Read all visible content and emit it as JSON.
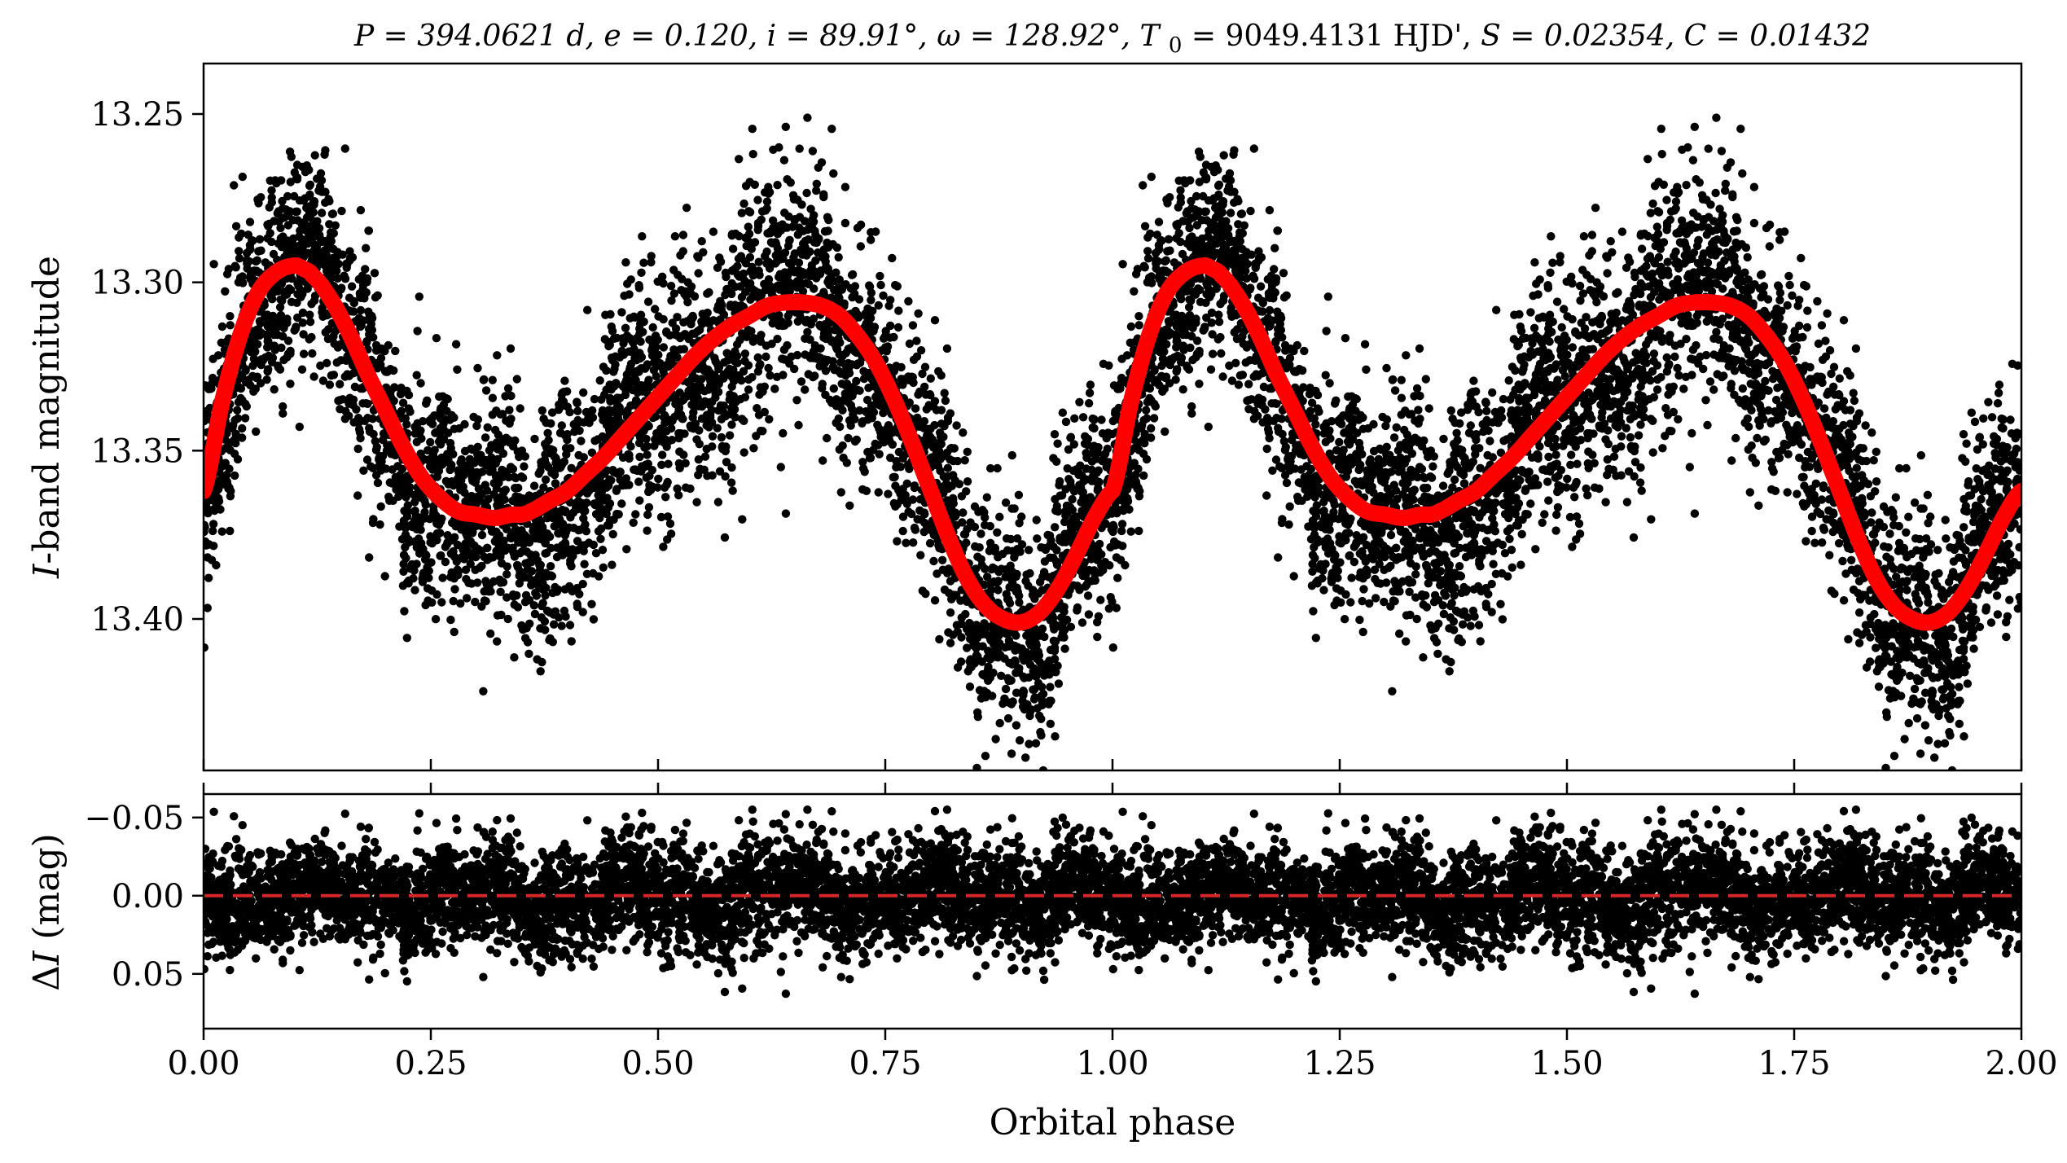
{
  "chart_data": [
    {
      "type": "scatter",
      "title": "P = 394.0621 d, e = 0.120, i = 89.91°, ω = 128.92°, T0 = 9049.4131 HJD', S = 0.02354, C = 0.01432",
      "title_parts": {
        "p": "P = 394.0621 d, ",
        "e": "e = 0.120, ",
        "i": "i = 89.91°, ",
        "omega": "ω = 128.92°, ",
        "t0_sym": "T",
        "t0_sub": "0",
        "t0_val": " = 9049.4131 HJD', ",
        "s": "S = 0.02354, ",
        "c": "C = 0.01432"
      },
      "xlabel": "",
      "ylabel": "I-band magnitude",
      "ylabel_parts": {
        "italic": "I",
        "rest": "-band magnitude"
      },
      "xlim": [
        0.0,
        2.0
      ],
      "ylim": [
        13.445,
        13.235
      ],
      "y_inverted": true,
      "yticks": [
        "13.25",
        "13.30",
        "13.35",
        "13.40"
      ],
      "yticks_values": [
        13.25,
        13.3,
        13.35,
        13.4
      ],
      "grid": false,
      "series": [
        {
          "kind": "points",
          "color": "#000000",
          "description_scatter": "observed photometry, phase-folded and repeated twice",
          "phase_scatter_sigma": 0.018,
          "approx_count": 9000
        },
        {
          "kind": "model",
          "color": "#ff0000",
          "x": [
            0.0,
            0.02,
            0.04,
            0.06,
            0.08,
            0.1,
            0.11,
            0.12,
            0.14,
            0.16,
            0.18,
            0.2,
            0.22,
            0.24,
            0.26,
            0.28,
            0.3,
            0.32,
            0.34,
            0.35,
            0.36,
            0.38,
            0.4,
            0.42,
            0.44,
            0.46,
            0.48,
            0.5,
            0.52,
            0.54,
            0.56,
            0.58,
            0.6,
            0.62,
            0.64,
            0.66,
            0.68,
            0.7,
            0.72,
            0.74,
            0.76,
            0.78,
            0.8,
            0.82,
            0.84,
            0.86,
            0.88,
            0.9,
            0.92,
            0.94,
            0.96,
            0.98,
            1.0
          ],
          "y": [
            13.362,
            13.336,
            13.316,
            13.303,
            13.297,
            13.295,
            13.296,
            13.298,
            13.305,
            13.315,
            13.327,
            13.338,
            13.349,
            13.358,
            13.364,
            13.368,
            13.369,
            13.37,
            13.369,
            13.369,
            13.368,
            13.365,
            13.362,
            13.357,
            13.352,
            13.346,
            13.34,
            13.334,
            13.328,
            13.322,
            13.317,
            13.313,
            13.31,
            13.307,
            13.306,
            13.306,
            13.307,
            13.31,
            13.316,
            13.324,
            13.335,
            13.348,
            13.362,
            13.376,
            13.388,
            13.396,
            13.4,
            13.401,
            13.398,
            13.391,
            13.381,
            13.37,
            13.362
          ]
        }
      ]
    },
    {
      "type": "scatter",
      "xlabel": "Orbital phase",
      "ylabel": "ΔI (mag)",
      "ylabel_parts": {
        "delta": "Δ",
        "italic": "I",
        "rest": " (mag)"
      },
      "xlim": [
        0.0,
        2.0
      ],
      "ylim": [
        0.085,
        -0.065
      ],
      "y_inverted": true,
      "xticks": [
        "0.00",
        "0.25",
        "0.50",
        "0.75",
        "1.00",
        "1.25",
        "1.50",
        "1.75",
        "2.00"
      ],
      "xticks_values": [
        0.0,
        0.25,
        0.5,
        0.75,
        1.0,
        1.25,
        1.5,
        1.75,
        2.0
      ],
      "yticks": [
        "−0.05",
        "0.00",
        "0.05"
      ],
      "yticks_values": [
        -0.05,
        0.0,
        0.05
      ],
      "grid": false,
      "series": [
        {
          "kind": "residual points",
          "color": "#000000",
          "scatter_sigma": 0.018,
          "range": [
            -0.055,
            0.07
          ]
        },
        {
          "kind": "zero line",
          "color": "#d62728",
          "style": "dashed",
          "y": 0.0
        }
      ]
    }
  ]
}
